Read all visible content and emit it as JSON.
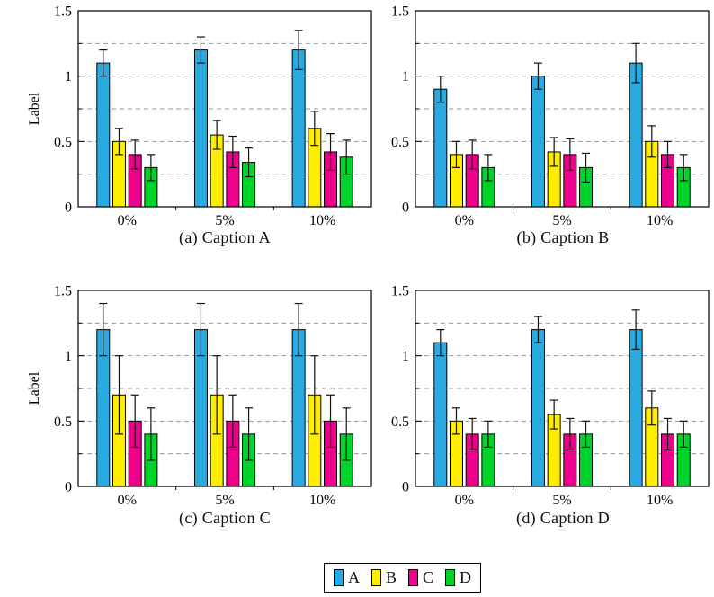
{
  "figure": {
    "background_color": "#ffffff",
    "axis_color": "#000000",
    "grid_color": "#9a9a9a",
    "errorbar_color": "#111111",
    "ylim": [
      0,
      1.5
    ],
    "ytick_values": [
      0,
      0.5,
      1,
      1.5
    ],
    "ytick_labels": [
      "0",
      "0.5",
      "1",
      "1.5"
    ],
    "minor_tick_values": [
      0.25,
      0.75,
      1.25
    ],
    "grid_values": [
      0.25,
      0.5,
      0.75,
      1,
      1.25
    ],
    "categories": [
      "0%",
      "5%",
      "10%"
    ]
  },
  "chart_data": [
    {
      "id": "a",
      "type": "bar",
      "caption": "(a) Caption A",
      "ylabel": "Label",
      "categories": [
        "0%",
        "5%",
        "10%"
      ],
      "ylim": [
        0,
        1.5
      ],
      "series": [
        {
          "name": "A",
          "color": "#29ABE2",
          "values": [
            1.1,
            1.2,
            1.2
          ],
          "errors": [
            0.1,
            0.1,
            0.15
          ]
        },
        {
          "name": "B",
          "color": "#FFED00",
          "values": [
            0.5,
            0.55,
            0.6
          ],
          "errors": [
            0.1,
            0.11,
            0.13
          ]
        },
        {
          "name": "C",
          "color": "#EC008C",
          "values": [
            0.4,
            0.42,
            0.42
          ],
          "errors": [
            0.11,
            0.12,
            0.14
          ]
        },
        {
          "name": "D",
          "color": "#00D42A",
          "values": [
            0.3,
            0.34,
            0.38
          ],
          "errors": [
            0.1,
            0.11,
            0.13
          ]
        }
      ]
    },
    {
      "id": "b",
      "type": "bar",
      "caption": "(b) Caption B",
      "ylabel": "",
      "categories": [
        "0%",
        "5%",
        "10%"
      ],
      "ylim": [
        0,
        1.5
      ],
      "series": [
        {
          "name": "A",
          "color": "#29ABE2",
          "values": [
            0.9,
            1.0,
            1.1
          ],
          "errors": [
            0.1,
            0.1,
            0.15
          ]
        },
        {
          "name": "B",
          "color": "#FFED00",
          "values": [
            0.4,
            0.42,
            0.5
          ],
          "errors": [
            0.1,
            0.11,
            0.12
          ]
        },
        {
          "name": "C",
          "color": "#EC008C",
          "values": [
            0.4,
            0.4,
            0.4
          ],
          "errors": [
            0.11,
            0.12,
            0.1
          ]
        },
        {
          "name": "D",
          "color": "#00D42A",
          "values": [
            0.3,
            0.3,
            0.3
          ],
          "errors": [
            0.1,
            0.11,
            0.1
          ]
        }
      ]
    },
    {
      "id": "c",
      "type": "bar",
      "caption": "(c) Caption C",
      "ylabel": "Label",
      "categories": [
        "0%",
        "5%",
        "10%"
      ],
      "ylim": [
        0,
        1.5
      ],
      "series": [
        {
          "name": "A",
          "color": "#29ABE2",
          "values": [
            1.2,
            1.2,
            1.2
          ],
          "errors": [
            0.2,
            0.2,
            0.2
          ]
        },
        {
          "name": "B",
          "color": "#FFED00",
          "values": [
            0.7,
            0.7,
            0.7
          ],
          "errors": [
            0.3,
            0.3,
            0.3
          ]
        },
        {
          "name": "C",
          "color": "#EC008C",
          "values": [
            0.5,
            0.5,
            0.5
          ],
          "errors": [
            0.2,
            0.2,
            0.2
          ]
        },
        {
          "name": "D",
          "color": "#00D42A",
          "values": [
            0.4,
            0.4,
            0.4
          ],
          "errors": [
            0.2,
            0.2,
            0.2
          ]
        }
      ]
    },
    {
      "id": "d",
      "type": "bar",
      "caption": "(d) Caption D",
      "ylabel": "",
      "categories": [
        "0%",
        "5%",
        "10%"
      ],
      "ylim": [
        0,
        1.5
      ],
      "series": [
        {
          "name": "A",
          "color": "#29ABE2",
          "values": [
            1.1,
            1.2,
            1.2
          ],
          "errors": [
            0.1,
            0.1,
            0.15
          ]
        },
        {
          "name": "B",
          "color": "#FFED00",
          "values": [
            0.5,
            0.55,
            0.6
          ],
          "errors": [
            0.1,
            0.11,
            0.13
          ]
        },
        {
          "name": "C",
          "color": "#EC008C",
          "values": [
            0.4,
            0.4,
            0.4
          ],
          "errors": [
            0.12,
            0.12,
            0.12
          ]
        },
        {
          "name": "D",
          "color": "#00D42A",
          "values": [
            0.4,
            0.4,
            0.4
          ],
          "errors": [
            0.1,
            0.1,
            0.1
          ]
        }
      ]
    }
  ],
  "legend": {
    "items": [
      {
        "label": "A",
        "color": "#29ABE2"
      },
      {
        "label": "B",
        "color": "#FFED00"
      },
      {
        "label": "C",
        "color": "#EC008C"
      },
      {
        "label": "D",
        "color": "#00D42A"
      }
    ]
  }
}
